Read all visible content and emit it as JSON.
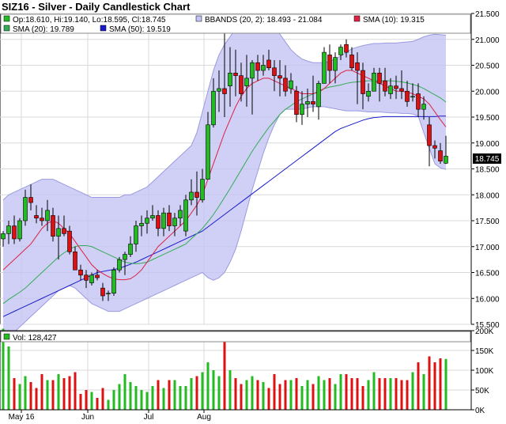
{
  "title": "SIZ16 - Silver - Daily Candlestick Chart",
  "legend": {
    "ohlc": "Op:18.610, Hi:19.140, Lo:18.595, Cl:18.745",
    "bbands": "BBANDS (20, 2): 18.493 - 21.084",
    "sma10": "SMA (10): 19.315",
    "sma20": "SMA (20): 19.789",
    "sma50": "SMA (50): 19.519",
    "volume": "Vol: 128,427"
  },
  "colors": {
    "up": "#22bb22",
    "down": "#dd1111",
    "bband_fill": "#c4c4f4",
    "bband_line": "#9a9ae0",
    "sma10": "#dd2244",
    "sma20": "#33aa55",
    "sma50": "#1a1acc",
    "grid": "#d8d8d8"
  },
  "last_price_label": "18.745",
  "chart_data": {
    "type": "candlestick",
    "price_axis": {
      "ylim": [
        15.5,
        21.5
      ],
      "ticks": [
        "21.500",
        "21.000",
        "20.500",
        "20.000",
        "19.500",
        "19.000",
        "18.500",
        "18.000",
        "17.500",
        "17.000",
        "16.500",
        "16.000",
        "15.500"
      ]
    },
    "volume_axis": {
      "ylim": [
        0,
        200000
      ],
      "ticks": [
        "200K",
        "150K",
        "100K",
        "50K",
        "0K"
      ]
    },
    "x_labels": [
      {
        "label": "May 16",
        "index": 3
      },
      {
        "label": "Jun",
        "index": 15
      },
      {
        "label": "Jul",
        "index": 26
      },
      {
        "label": "Aug",
        "index": 36
      }
    ],
    "candles": [
      [
        17.15,
        17.3,
        17.0,
        17.25,
        205000
      ],
      [
        17.25,
        17.5,
        17.05,
        17.4,
        160000
      ],
      [
        17.4,
        17.6,
        17.05,
        17.15,
        80000
      ],
      [
        17.15,
        17.55,
        17.1,
        17.5,
        65000
      ],
      [
        17.5,
        18.1,
        17.4,
        17.95,
        85000
      ],
      [
        17.95,
        18.2,
        17.7,
        17.85,
        70000
      ],
      [
        17.6,
        17.8,
        17.45,
        17.55,
        55000
      ],
      [
        17.55,
        17.75,
        17.4,
        17.5,
        90000
      ],
      [
        17.5,
        17.9,
        17.3,
        17.7,
        75000
      ],
      [
        17.6,
        17.75,
        17.1,
        17.2,
        75000
      ],
      [
        17.2,
        17.6,
        16.75,
        17.35,
        90000
      ],
      [
        17.35,
        17.6,
        17.2,
        17.25,
        80000
      ],
      [
        17.3,
        17.4,
        16.85,
        16.9,
        85000
      ],
      [
        16.9,
        17.0,
        16.55,
        16.55,
        95000
      ],
      [
        16.55,
        16.65,
        16.35,
        16.45,
        40000
      ],
      [
        16.45,
        16.55,
        16.2,
        16.35,
        50000
      ],
      [
        16.3,
        16.5,
        16.25,
        16.45,
        45000
      ],
      [
        16.45,
        16.55,
        16.35,
        16.4,
        30000
      ],
      [
        16.2,
        16.3,
        15.95,
        16.05,
        55000
      ],
      [
        16.1,
        16.15,
        15.95,
        16.1,
        25000
      ],
      [
        16.1,
        16.6,
        16.05,
        16.55,
        50000
      ],
      [
        16.55,
        16.8,
        16.5,
        16.75,
        65000
      ],
      [
        16.75,
        16.9,
        16.45,
        16.85,
        90000
      ],
      [
        16.85,
        17.2,
        16.8,
        17.05,
        70000
      ],
      [
        17.05,
        17.5,
        16.9,
        17.4,
        60000
      ],
      [
        17.4,
        17.6,
        17.2,
        17.45,
        50000
      ],
      [
        17.45,
        17.7,
        17.25,
        17.55,
        45000
      ],
      [
        17.55,
        17.8,
        17.5,
        17.6,
        60000
      ],
      [
        17.6,
        17.7,
        17.2,
        17.35,
        75000
      ],
      [
        17.35,
        17.75,
        17.2,
        17.65,
        55000
      ],
      [
        17.65,
        17.8,
        17.3,
        17.4,
        75000
      ],
      [
        17.4,
        17.65,
        17.2,
        17.55,
        75000
      ],
      [
        17.55,
        17.8,
        17.4,
        17.7,
        60000
      ],
      [
        17.3,
        18.0,
        17.2,
        17.9,
        60000
      ],
      [
        17.9,
        18.3,
        17.8,
        18.05,
        80000
      ],
      [
        18.05,
        18.45,
        17.6,
        17.95,
        85000
      ],
      [
        17.9,
        18.5,
        17.85,
        18.3,
        95000
      ],
      [
        18.3,
        19.6,
        18.3,
        19.35,
        120000
      ],
      [
        19.35,
        20.25,
        19.3,
        20.0,
        100000
      ],
      [
        20.0,
        20.4,
        19.6,
        20.05,
        85000
      ],
      [
        20.05,
        21.2,
        19.5,
        19.95,
        190000
      ],
      [
        20.1,
        20.85,
        19.7,
        20.35,
        100000
      ],
      [
        20.35,
        20.8,
        19.9,
        20.3,
        80000
      ],
      [
        20.3,
        20.55,
        19.8,
        19.95,
        65000
      ],
      [
        20.1,
        20.7,
        19.7,
        20.25,
        75000
      ],
      [
        20.25,
        20.6,
        19.55,
        20.55,
        85000
      ],
      [
        20.55,
        20.7,
        20.2,
        20.4,
        75000
      ],
      [
        20.4,
        20.7,
        20.3,
        20.5,
        70000
      ],
      [
        20.6,
        20.8,
        20.4,
        20.45,
        55000
      ],
      [
        20.45,
        20.6,
        20.0,
        20.3,
        90000
      ],
      [
        20.3,
        20.6,
        19.9,
        20.25,
        65000
      ],
      [
        20.25,
        20.5,
        19.9,
        20.0,
        75000
      ],
      [
        20.05,
        20.35,
        19.95,
        20.2,
        75000
      ],
      [
        20.0,
        20.1,
        19.4,
        19.55,
        80000
      ],
      [
        19.55,
        20.0,
        19.35,
        19.75,
        60000
      ],
      [
        19.75,
        20.05,
        19.5,
        19.8,
        75000
      ],
      [
        19.8,
        20.3,
        19.6,
        19.75,
        65000
      ],
      [
        19.7,
        20.2,
        19.45,
        20.15,
        85000
      ],
      [
        20.15,
        20.85,
        20.15,
        20.75,
        75000
      ],
      [
        20.7,
        20.9,
        20.15,
        20.4,
        80000
      ],
      [
        20.4,
        20.75,
        20.15,
        20.65,
        65000
      ],
      [
        20.7,
        20.9,
        20.6,
        20.85,
        90000
      ],
      [
        20.9,
        21.0,
        20.65,
        20.75,
        90000
      ],
      [
        20.7,
        20.85,
        20.4,
        20.45,
        80000
      ],
      [
        20.55,
        20.75,
        19.75,
        20.4,
        80000
      ],
      [
        20.4,
        20.55,
        19.65,
        19.95,
        60000
      ],
      [
        19.9,
        20.15,
        19.8,
        20.0,
        75000
      ],
      [
        20.0,
        20.45,
        20.0,
        20.35,
        95000
      ],
      [
        20.35,
        20.45,
        19.8,
        20.15,
        80000
      ],
      [
        20.2,
        20.45,
        19.9,
        20.0,
        80000
      ],
      [
        19.95,
        20.25,
        19.85,
        20.1,
        80000
      ],
      [
        20.1,
        20.3,
        19.85,
        20.05,
        80000
      ],
      [
        20.05,
        20.4,
        19.85,
        20.0,
        75000
      ],
      [
        20.0,
        20.2,
        19.7,
        19.8,
        75000
      ],
      [
        19.9,
        20.15,
        19.8,
        19.9,
        95000
      ],
      [
        19.95,
        20.15,
        19.5,
        19.65,
        120000
      ],
      [
        19.65,
        19.9,
        19.45,
        19.75,
        90000
      ],
      [
        19.35,
        19.5,
        18.55,
        18.95,
        135000
      ],
      [
        18.95,
        19.05,
        18.7,
        18.9,
        120000
      ],
      [
        18.85,
        19.0,
        18.6,
        18.65,
        130000
      ],
      [
        18.61,
        19.14,
        18.595,
        18.745,
        128427
      ]
    ],
    "sma10": [
      16.55,
      16.65,
      16.75,
      16.85,
      16.95,
      17.05,
      17.2,
      17.35,
      17.45,
      17.5,
      17.45,
      17.35,
      17.25,
      17.1,
      16.95,
      16.8,
      16.65,
      16.55,
      16.48,
      16.42,
      16.38,
      16.36,
      16.36,
      16.38,
      16.45,
      16.55,
      16.7,
      16.85,
      17.0,
      17.1,
      17.2,
      17.3,
      17.4,
      17.5,
      17.65,
      17.8,
      18.0,
      18.3,
      18.6,
      18.9,
      19.2,
      19.45,
      19.7,
      19.9,
      20.05,
      20.15,
      20.2,
      20.25,
      20.25,
      20.2,
      20.15,
      20.1,
      20.05,
      20.0,
      19.95,
      19.95,
      19.95,
      19.98,
      20.05,
      20.15,
      20.25,
      20.35,
      20.4,
      20.4,
      20.35,
      20.3,
      20.25,
      20.2,
      20.15,
      20.1,
      20.05,
      20.0,
      20.0,
      19.98,
      19.95,
      19.9,
      19.85,
      19.75,
      19.6,
      19.45,
      19.31
    ],
    "sma20": [
      15.9,
      15.98,
      16.05,
      16.12,
      16.2,
      16.3,
      16.4,
      16.5,
      16.6,
      16.7,
      16.8,
      16.88,
      16.95,
      17.0,
      17.02,
      17.02,
      17.0,
      16.95,
      16.9,
      16.85,
      16.8,
      16.75,
      16.7,
      16.68,
      16.67,
      16.68,
      16.7,
      16.75,
      16.8,
      16.85,
      16.9,
      16.95,
      17.0,
      17.05,
      17.15,
      17.25,
      17.35,
      17.48,
      17.62,
      17.78,
      17.95,
      18.12,
      18.3,
      18.48,
      18.66,
      18.84,
      19.0,
      19.15,
      19.3,
      19.42,
      19.55,
      19.65,
      19.72,
      19.8,
      19.85,
      19.9,
      19.95,
      20.0,
      20.05,
      20.08,
      20.1,
      20.12,
      20.15,
      20.17,
      20.18,
      20.19,
      20.2,
      20.2,
      20.2,
      20.2,
      20.2,
      20.19,
      20.18,
      20.16,
      20.13,
      20.1,
      20.05,
      19.99,
      19.93,
      19.87,
      19.79
    ],
    "sma50": [
      15.65,
      15.7,
      15.75,
      15.8,
      15.85,
      15.9,
      15.95,
      16.0,
      16.05,
      16.1,
      16.15,
      16.2,
      16.25,
      16.3,
      16.35,
      16.4,
      16.45,
      16.5,
      16.52,
      16.54,
      16.56,
      16.58,
      16.62,
      16.66,
      16.7,
      16.75,
      16.8,
      16.85,
      16.9,
      16.95,
      17.0,
      17.05,
      17.1,
      17.15,
      17.2,
      17.25,
      17.3,
      17.38,
      17.46,
      17.54,
      17.62,
      17.7,
      17.78,
      17.86,
      17.94,
      18.02,
      18.1,
      18.18,
      18.26,
      18.34,
      18.42,
      18.5,
      18.58,
      18.66,
      18.74,
      18.82,
      18.9,
      18.98,
      19.06,
      19.14,
      19.22,
      19.28,
      19.32,
      19.36,
      19.4,
      19.44,
      19.47,
      19.49,
      19.5,
      19.51,
      19.51,
      19.51,
      19.51,
      19.51,
      19.51,
      19.51,
      19.51,
      19.51,
      19.51,
      19.52,
      19.52
    ],
    "bb_upper": [
      17.9,
      18.0,
      18.05,
      18.1,
      18.15,
      18.2,
      18.25,
      18.3,
      18.3,
      18.3,
      18.25,
      18.2,
      18.15,
      18.1,
      18.05,
      18.0,
      17.95,
      17.95,
      17.95,
      17.95,
      17.95,
      17.95,
      18.0,
      18.0,
      18.05,
      18.1,
      18.15,
      18.25,
      18.35,
      18.45,
      18.55,
      18.65,
      18.75,
      18.85,
      18.95,
      19.2,
      19.6,
      20.0,
      20.4,
      20.7,
      20.9,
      21.05,
      21.2,
      21.3,
      21.4,
      21.45,
      21.45,
      21.4,
      21.35,
      21.25,
      21.1,
      20.95,
      20.8,
      20.7,
      20.62,
      20.58,
      20.55,
      20.55,
      20.55,
      20.58,
      20.62,
      20.68,
      20.75,
      20.82,
      20.85,
      20.88,
      20.9,
      20.92,
      20.92,
      20.93,
      20.93,
      20.93,
      20.94,
      20.95,
      20.96,
      21.0,
      21.05,
      21.08,
      21.1,
      21.09,
      21.08
    ],
    "bb_lower": [
      15.2,
      15.25,
      15.35,
      15.45,
      15.55,
      15.65,
      15.75,
      15.85,
      15.95,
      16.05,
      16.15,
      16.2,
      16.25,
      16.2,
      16.1,
      16.0,
      15.9,
      15.85,
      15.8,
      15.75,
      15.75,
      15.75,
      15.8,
      15.85,
      15.9,
      15.95,
      16.0,
      16.05,
      16.1,
      16.15,
      16.2,
      16.25,
      16.3,
      16.35,
      16.4,
      16.45,
      16.5,
      16.4,
      16.35,
      16.4,
      16.5,
      16.7,
      16.95,
      17.3,
      17.7,
      18.1,
      18.45,
      18.8,
      19.1,
      19.35,
      19.55,
      19.65,
      19.65,
      19.65,
      19.65,
      19.68,
      19.7,
      19.7,
      19.7,
      19.68,
      19.66,
      19.64,
      19.62,
      19.62,
      19.62,
      19.61,
      19.6,
      19.6,
      19.6,
      19.59,
      19.58,
      19.58,
      19.57,
      19.57,
      19.56,
      19.52,
      19.2,
      18.9,
      18.6,
      18.52,
      18.49
    ]
  }
}
